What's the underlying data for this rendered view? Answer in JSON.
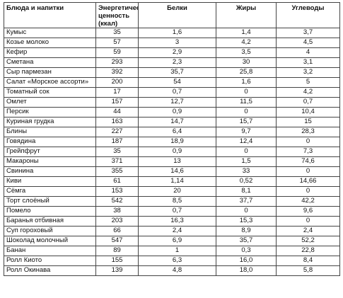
{
  "table": {
    "header": [
      "Блюда и напитки",
      "Энергетическая ценность (ккал)",
      "Белки",
      "Жиры",
      "Углеводы"
    ],
    "rows": [
      [
        "Кумыс",
        "35",
        "1,6",
        "1,4",
        "3,7"
      ],
      [
        "Козье молоко",
        "57",
        "3",
        "4,2",
        "4,5"
      ],
      [
        "Кефир",
        "59",
        "2,9",
        "3,5",
        "4"
      ],
      [
        "Сметана",
        "293",
        "2,3",
        "30",
        "3,1"
      ],
      [
        "Сыр пармезан",
        "392",
        "35,7",
        "25,8",
        "3,2"
      ],
      [
        "Салат «Морское ассорти»",
        "200",
        "54",
        "1,6",
        "5"
      ],
      [
        "Томатный сок",
        "17",
        "0,7",
        "0",
        "4,2"
      ],
      [
        "Омлет",
        "157",
        "12,7",
        "11,5",
        "0,7"
      ],
      [
        "Персик",
        "44",
        "0,9",
        "0",
        "10,4"
      ],
      [
        "Куриная грудка",
        "163",
        "14,7",
        "15,7",
        "15"
      ],
      [
        "Блины",
        "227",
        "6,4",
        "9,7",
        "28,3"
      ],
      [
        "Говядина",
        "187",
        "18,9",
        "12,4",
        "0"
      ],
      [
        "Грейпфрут",
        "35",
        "0,9",
        "0",
        "7,3"
      ],
      [
        "Макароны",
        "371",
        "13",
        "1,5",
        "74,6"
      ],
      [
        "Свинина",
        "355",
        "14,6",
        "33",
        "0"
      ],
      [
        "Киви",
        "61",
        "1,14",
        "0,52",
        "14,66"
      ],
      [
        "Сёмга",
        "153",
        "20",
        "8,1",
        "0"
      ],
      [
        "Торт слоёный",
        "542",
        "8,5",
        "37,7",
        "42,2"
      ],
      [
        "Помело",
        "38",
        "0,7",
        "0",
        "9,6"
      ],
      [
        "Баранья отбивная",
        "203",
        "16,3",
        "15,3",
        "0"
      ],
      [
        "Суп гороховый",
        "66",
        "2,4",
        "8,9",
        "2,4"
      ],
      [
        "Шоколад молочный",
        "547",
        "6,9",
        "35,7",
        "52,2"
      ],
      [
        "Банан",
        "89",
        "1",
        "0,3",
        "22,8"
      ],
      [
        "Ролл Киото",
        "155",
        "6,3",
        "16,0",
        "8,4"
      ],
      [
        "Ролл Окинава",
        "139",
        "4,8",
        "18,0",
        "5,8"
      ]
    ]
  }
}
